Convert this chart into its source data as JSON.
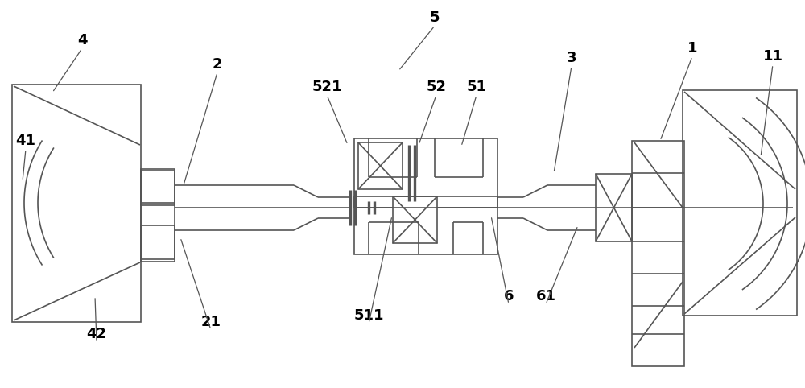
{
  "bg": "#ffffff",
  "lc": "#555555",
  "lw": 1.2,
  "fw": 10.0,
  "fh": 4.82,
  "dpi": 100,
  "labels": [
    [
      "1",
      860,
      60,
      820,
      175
    ],
    [
      "11",
      960,
      70,
      945,
      195
    ],
    [
      "2",
      270,
      80,
      228,
      230
    ],
    [
      "21",
      262,
      400,
      224,
      295
    ],
    [
      "3",
      710,
      72,
      688,
      215
    ],
    [
      "4",
      102,
      50,
      65,
      115
    ],
    [
      "41",
      32,
      175,
      28,
      225
    ],
    [
      "42",
      120,
      415,
      118,
      368
    ],
    [
      "5",
      540,
      22,
      495,
      88
    ],
    [
      "51",
      592,
      108,
      573,
      182
    ],
    [
      "52",
      542,
      108,
      520,
      180
    ],
    [
      "521",
      406,
      108,
      432,
      180
    ],
    [
      "511",
      458,
      392,
      487,
      268
    ],
    [
      "6",
      632,
      368,
      610,
      268
    ],
    [
      "61",
      678,
      368,
      718,
      280
    ]
  ],
  "label_fs": 13,
  "label_fw": "bold"
}
